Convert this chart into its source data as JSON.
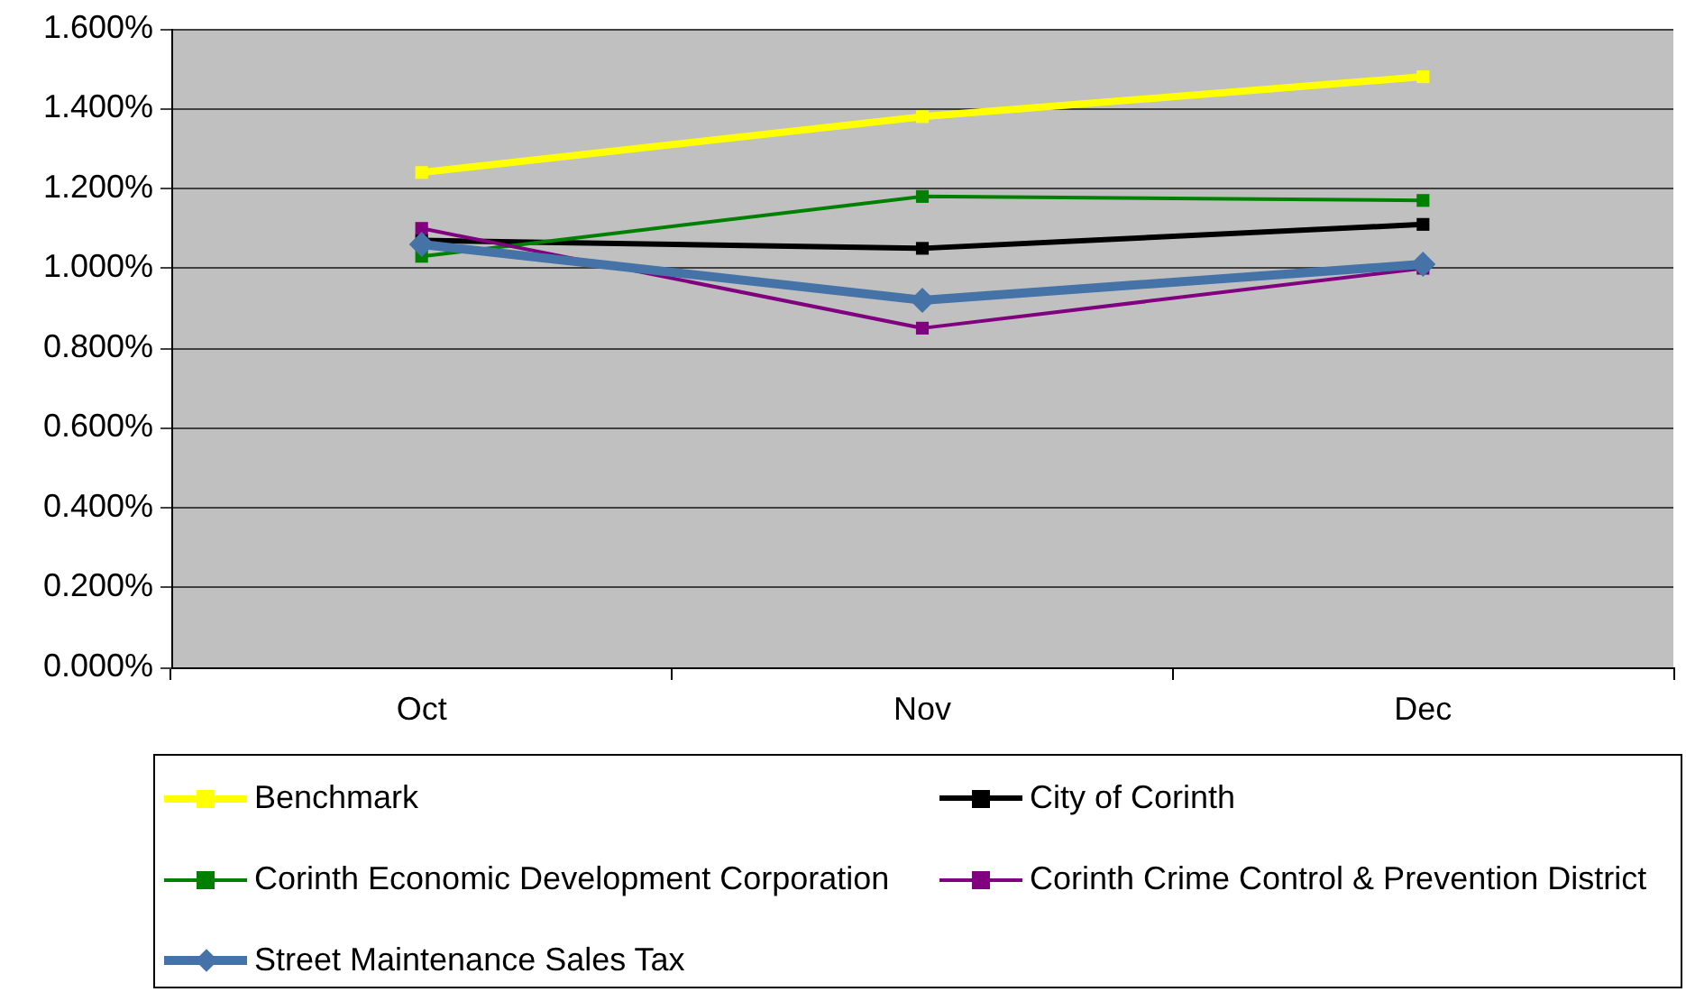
{
  "chart_data": {
    "type": "line",
    "categories": [
      "Oct",
      "Nov",
      "Dec"
    ],
    "series": [
      {
        "name": "Benchmark",
        "color": "#ffff00",
        "values": [
          1.24,
          1.38,
          1.48
        ]
      },
      {
        "name": "City of Corinth",
        "color": "#000000",
        "values": [
          1.07,
          1.05,
          1.11
        ]
      },
      {
        "name": "Corinth Economic Development Corporation",
        "color": "#008000",
        "values": [
          1.03,
          1.18,
          1.17
        ]
      },
      {
        "name": "Corinth Crime Control & Prevention District",
        "color": "#800080",
        "values": [
          1.1,
          0.85,
          1.0
        ]
      },
      {
        "name": "Street Maintenance Sales Tax",
        "color": "#4572a7",
        "values": [
          1.06,
          0.92,
          1.01
        ],
        "marker": "diamond"
      }
    ],
    "ylim": [
      0,
      1.6
    ],
    "yticks": [
      {
        "value": 0,
        "label": "0.000%"
      },
      {
        "value": 0.2,
        "label": "0.200%"
      },
      {
        "value": 0.4,
        "label": "0.400%"
      },
      {
        "value": 0.6,
        "label": "0.600%"
      },
      {
        "value": 0.8,
        "label": "0.800%"
      },
      {
        "value": 1.0,
        "label": "1.000%"
      },
      {
        "value": 1.2,
        "label": "1.200%"
      },
      {
        "value": 1.4,
        "label": "1.400%"
      },
      {
        "value": 1.6,
        "label": "1.600%"
      }
    ],
    "grid": "y",
    "legend": "bottom",
    "marker": "square",
    "line_style": "solid"
  }
}
